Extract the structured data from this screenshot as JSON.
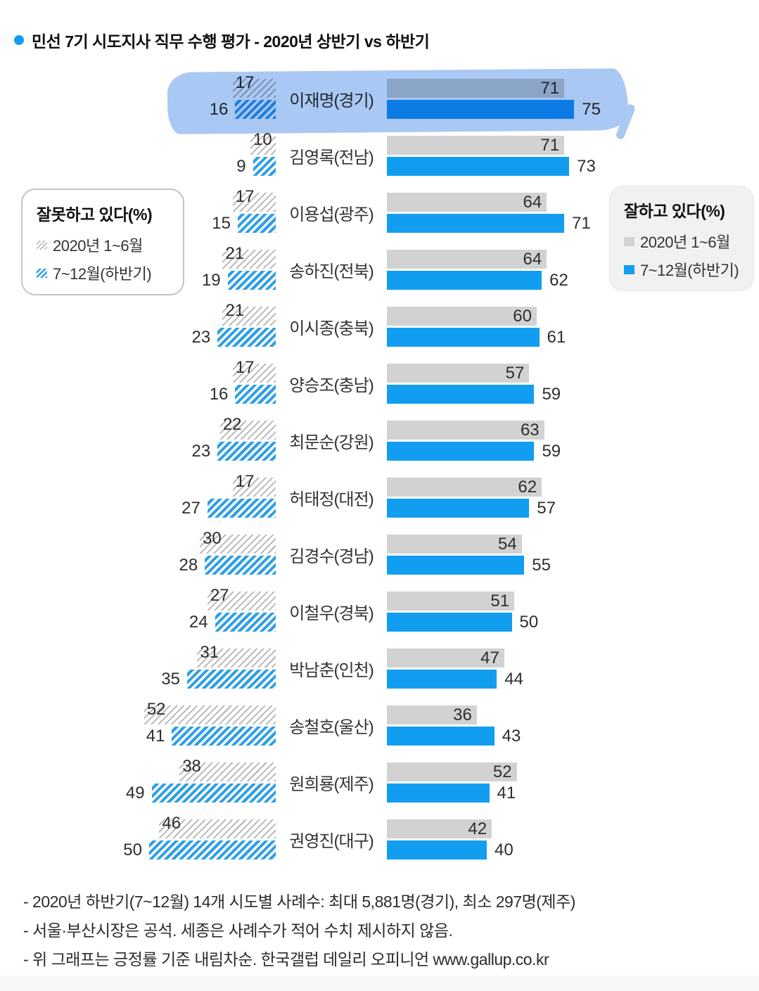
{
  "title": {
    "text": "민선 7기 시도지사 직무 수행 평가 - 2020년 상반기 vs 하반기"
  },
  "legend_left": {
    "title": "잘못하고 있다(%)",
    "items": [
      {
        "label": "2020년 1~6월",
        "swatch": "hatch-gray"
      },
      {
        "label": "7~12월(하반기)",
        "swatch": "hatch-blue"
      }
    ]
  },
  "legend_right": {
    "title": "잘하고 있다(%)",
    "items": [
      {
        "label": "2020년 1~6월",
        "swatch": "solid-gray"
      },
      {
        "label": "7~12월(하반기)",
        "swatch": "solid-blue"
      }
    ]
  },
  "colors": {
    "accent_blue": "#129EF0",
    "bar_gray": "#D2D2D2",
    "hatch_blue": "#2E9FE6",
    "hatch_gray_line": "#B3B3B3",
    "highlight_marker": "#A9C8F3",
    "text": "#2E2E2E"
  },
  "chart_data": {
    "type": "bar",
    "variant": "horizontal-diverging-grouped",
    "title": "민선 7기 시도지사 직무 수행 평가 - 2020년 상반기 vs 하반기",
    "categories": [
      "이재명(경기)",
      "김영록(전남)",
      "이용섭(광주)",
      "송하진(전북)",
      "이시종(충북)",
      "양승조(충남)",
      "최문순(강원)",
      "허태정(대전)",
      "김경수(경남)",
      "이철우(경북)",
      "박남춘(인천)",
      "송철호(울산)",
      "원희룡(제주)",
      "권영진(대구)"
    ],
    "series": [
      {
        "name": "잘못하고 있다(%) 2020년 1~6월",
        "side": "left",
        "style": "hatched-gray",
        "values": [
          17,
          10,
          17,
          21,
          21,
          17,
          22,
          17,
          30,
          27,
          31,
          52,
          38,
          46
        ]
      },
      {
        "name": "잘못하고 있다(%) 7~12월(하반기)",
        "side": "left",
        "style": "hatched-blue",
        "values": [
          16,
          9,
          15,
          19,
          23,
          16,
          23,
          27,
          28,
          24,
          35,
          41,
          49,
          50
        ]
      },
      {
        "name": "잘하고 있다(%) 2020년 1~6월",
        "side": "right",
        "style": "solid-gray",
        "values": [
          71,
          71,
          64,
          64,
          60,
          57,
          63,
          62,
          54,
          51,
          47,
          36,
          52,
          42
        ]
      },
      {
        "name": "잘하고 있다(%) 7~12월(하반기)",
        "side": "right",
        "style": "solid-blue",
        "values": [
          75,
          73,
          71,
          62,
          61,
          59,
          59,
          57,
          55,
          50,
          44,
          43,
          41,
          40
        ]
      }
    ],
    "highlighted_category": "이재명(경기)",
    "value_range": [
      0,
      75
    ],
    "legend_position": "both-sides",
    "sort_note": "긍정률 기준 내림차순"
  },
  "footnotes": [
    "- 2020년 하반기(7~12월) 14개 시도별 사례수: 최대 5,881명(경기), 최소 297명(제주)",
    "- 서울·부산시장은 공석. 세종은 사례수가 적어 수치 제시하지 않음.",
    "- 위 그래프는 긍정률 기준 내림차순. 한국갤럽 데일리 오피니언 www.gallup.co.kr"
  ]
}
